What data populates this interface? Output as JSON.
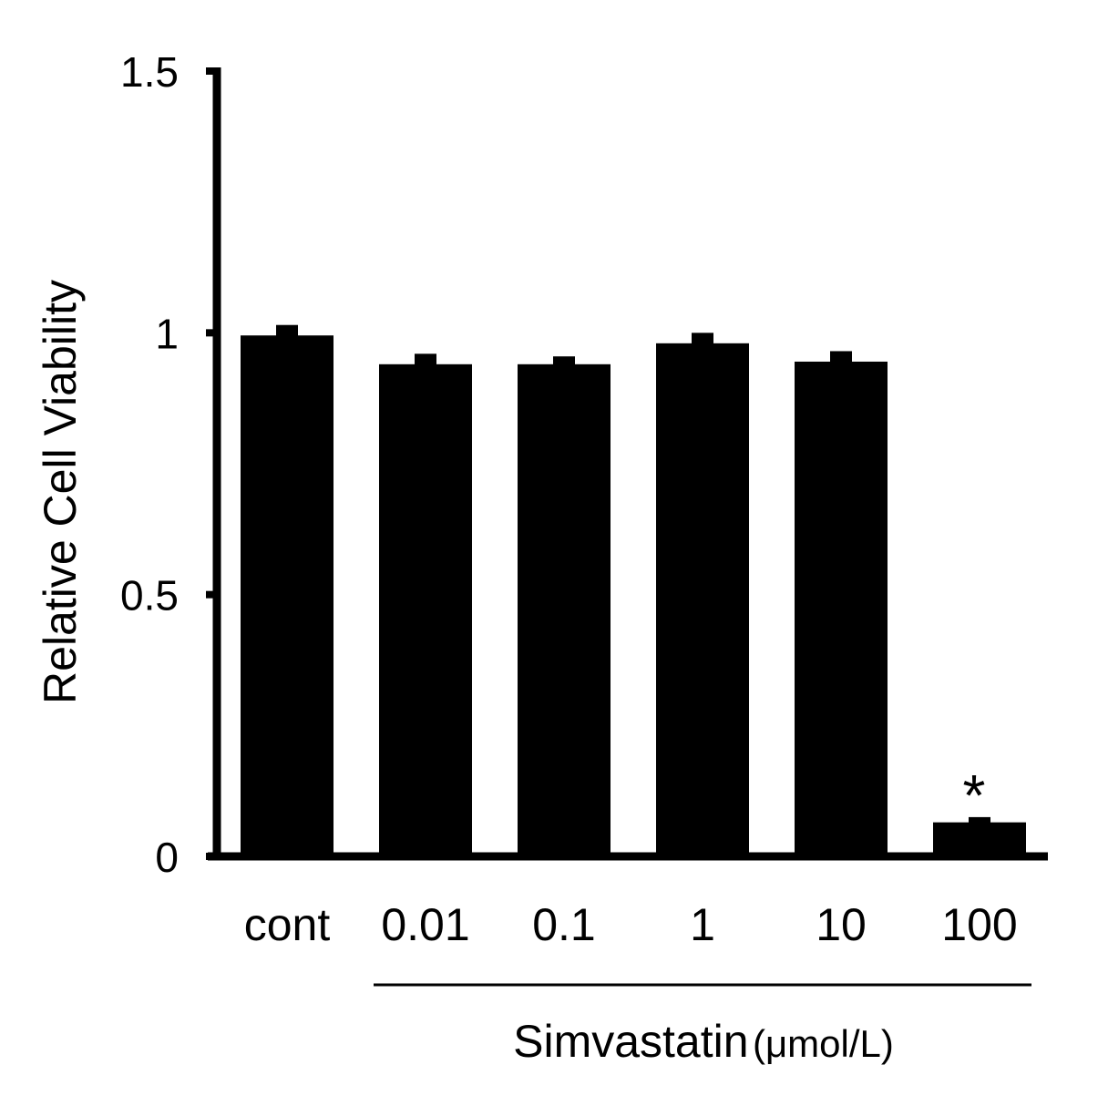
{
  "chart_data": {
    "type": "bar",
    "title": "",
    "ylabel": "Relative Cell Viability",
    "xgroup_label": "Simvastatin",
    "xgroup_unit": "(μmol/L)",
    "categories": [
      "cont",
      "0.01",
      "0.1",
      "1",
      "10",
      "100"
    ],
    "values": [
      0.995,
      0.94,
      0.94,
      0.98,
      0.945,
      0.065
    ],
    "errors": [
      0.02,
      0.02,
      0.015,
      0.02,
      0.02,
      0.01
    ],
    "ylim": [
      0,
      1.5
    ],
    "yticks": [
      0,
      0.5,
      1,
      1.5
    ],
    "ytick_labels": [
      "0",
      "0.5",
      "1",
      "1.5"
    ],
    "annotations": [
      {
        "category": "100",
        "text": "*"
      }
    ],
    "colors": {
      "bar": "#000000",
      "axis": "#000000",
      "background": "#ffffff"
    },
    "grid": false,
    "legend": "none"
  }
}
